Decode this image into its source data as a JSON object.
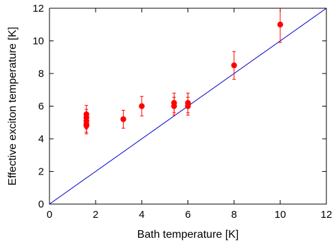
{
  "chart_data": {
    "type": "scatter",
    "title": "",
    "xlabel": "Bath temperature [K]",
    "ylabel": "Effective exciton temperature [K]",
    "xlim": [
      0,
      12
    ],
    "ylim": [
      0,
      12
    ],
    "xticks": [
      0,
      2,
      4,
      6,
      8,
      10,
      12
    ],
    "yticks": [
      0,
      2,
      4,
      6,
      8,
      10,
      12
    ],
    "xtick_labels": [
      "0",
      "2",
      "4",
      "6",
      "8",
      "10",
      "12"
    ],
    "ytick_labels": [
      "0",
      "2",
      "4",
      "6",
      "8",
      "10",
      "12"
    ],
    "grid": false,
    "series": [
      {
        "marker_color": "#ff0000",
        "points": [
          {
            "x": 1.6,
            "y": 5.5,
            "yerr": 0.55
          },
          {
            "x": 1.6,
            "y": 5.3,
            "yerr": 0.5
          },
          {
            "x": 1.6,
            "y": 5.1,
            "yerr": 0.5
          },
          {
            "x": 1.6,
            "y": 4.9,
            "yerr": 0.5
          },
          {
            "x": 1.6,
            "y": 4.8,
            "yerr": 0.5
          },
          {
            "x": 3.2,
            "y": 5.2,
            "yerr": 0.55
          },
          {
            "x": 4.0,
            "y": 6.0,
            "yerr": 0.6
          },
          {
            "x": 5.4,
            "y": 6.2,
            "yerr": 0.6
          },
          {
            "x": 5.4,
            "y": 6.0,
            "yerr": 0.55
          },
          {
            "x": 6.0,
            "y": 6.2,
            "yerr": 0.6
          },
          {
            "x": 6.0,
            "y": 6.0,
            "yerr": 0.55
          },
          {
            "x": 8.0,
            "y": 8.5,
            "yerr": 0.85
          },
          {
            "x": 10.0,
            "y": 11.0,
            "yerr": 1.1
          }
        ]
      },
      {
        "type": "line",
        "line_color": "#0000cc",
        "x": [
          0,
          12
        ],
        "y": [
          0,
          12
        ]
      }
    ]
  }
}
